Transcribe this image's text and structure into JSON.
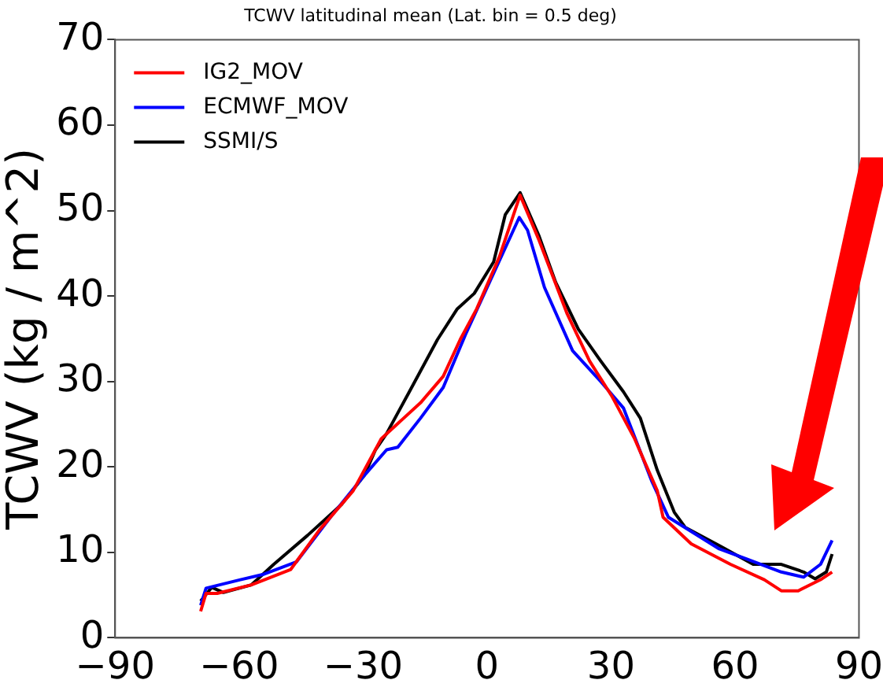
{
  "chart_data": {
    "type": "line",
    "title": "TCWV latitudinal mean (Lat. bin = 0.5 deg)",
    "ylabel": "TCWV (kg / m^2)",
    "xlim": [
      -90,
      90
    ],
    "xticks": [
      -90,
      -60,
      -30,
      0,
      30,
      60,
      90
    ],
    "ylim": [
      0,
      70
    ],
    "yticks": [
      0,
      10,
      20,
      30,
      40,
      50,
      60,
      70
    ],
    "grid": false,
    "legend": "top left",
    "marker": "none",
    "line_style": "solid",
    "series": [
      {
        "name": "IG2_MOV",
        "color": "#ff0000",
        "x": [
          -69.3,
          -68,
          -65.3,
          -57,
          -47.5,
          -40.6,
          -32.4,
          -25.6,
          -16.1,
          -10.6,
          -6.5,
          -2.5,
          3,
          8,
          12.6,
          19.4,
          24.8,
          30.3,
          35.7,
          41.2,
          42.6,
          49.4,
          58.9,
          67.1,
          71.2,
          75.3,
          80.7,
          83.5
        ],
        "values": [
          3.1,
          5.2,
          5.2,
          6.2,
          8,
          12.6,
          17.2,
          23.3,
          27.5,
          30.6,
          34.9,
          38.5,
          44.6,
          51.8,
          46.5,
          37.9,
          32.4,
          28.2,
          23.3,
          17.2,
          14.1,
          11,
          8.6,
          6.8,
          5.5,
          5.5,
          6.8,
          7.7
        ]
      },
      {
        "name": "ECMWF_MOV",
        "color": "#0000ff",
        "x": [
          -69.3,
          -68,
          -59.7,
          -54.3,
          -46.1,
          -37.9,
          -29.7,
          -24.3,
          -21.6,
          -16.1,
          -10.6,
          -5.2,
          7.8,
          9.8,
          13.9,
          20.7,
          27.5,
          33,
          39.8,
          43.9,
          56.2,
          63,
          71.2,
          76.6,
          80.7,
          83.5
        ],
        "values": [
          3.8,
          5.8,
          6.8,
          7.4,
          8.9,
          14.1,
          19,
          22,
          22.3,
          25.7,
          29.3,
          35.5,
          49.2,
          47.7,
          41,
          33.6,
          30,
          26.9,
          18.4,
          14.1,
          10.4,
          9.2,
          7.7,
          7.1,
          8.6,
          11.4
        ]
      },
      {
        "name": "SSMI/S",
        "color": "#000000",
        "x": [
          -69.3,
          -66.6,
          -63.8,
          -57,
          -51.6,
          -43.4,
          -35.2,
          -29.7,
          -27,
          -24.3,
          -18.8,
          -12,
          -7.2,
          -3.1,
          1.6,
          4.4,
          8,
          12.6,
          16.6,
          22.1,
          27.5,
          33,
          37.1,
          41.2,
          45.3,
          48,
          56.2,
          64.4,
          71.2,
          76.6,
          79.4,
          82.1,
          83.5
        ],
        "values": [
          4.3,
          5.9,
          5.3,
          6.2,
          8.6,
          12,
          15.6,
          19,
          22,
          23.9,
          28.8,
          34.9,
          38.5,
          40.3,
          44,
          49.5,
          52.1,
          47,
          41.6,
          36.1,
          32.4,
          28.8,
          25.7,
          19.6,
          14.7,
          12.9,
          10.8,
          8.6,
          8.6,
          7.7,
          6.9,
          7.7,
          9.8
        ]
      }
    ]
  }
}
